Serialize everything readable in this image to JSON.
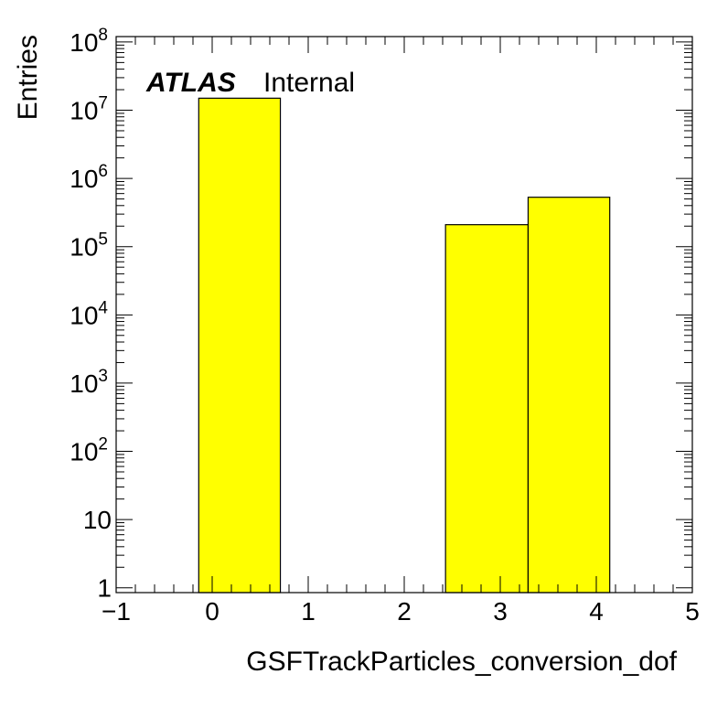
{
  "chart_data": {
    "type": "bar",
    "histogram": true,
    "label": {
      "experiment": "ATLAS",
      "status": "Internal"
    },
    "xlabel": "GSFTrackParticles_conversion_dof",
    "ylabel": "Entries",
    "xlim": [
      -1,
      5
    ],
    "ylim": [
      0.85,
      120000000
    ],
    "yscale": "log",
    "x_ticks": [
      {
        "value": -1,
        "label": "−1"
      },
      {
        "value": 0,
        "label": "0"
      },
      {
        "value": 1,
        "label": "1"
      },
      {
        "value": 2,
        "label": "2"
      },
      {
        "value": 3,
        "label": "3"
      },
      {
        "value": 4,
        "label": "4"
      },
      {
        "value": 5,
        "label": "5"
      }
    ],
    "y_ticks": [
      {
        "value": 1,
        "base": "1",
        "exp": ""
      },
      {
        "value": 10,
        "base": "10",
        "exp": ""
      },
      {
        "value": 100,
        "base": "10",
        "exp": "2"
      },
      {
        "value": 1000,
        "base": "10",
        "exp": "3"
      },
      {
        "value": 10000,
        "base": "10",
        "exp": "4"
      },
      {
        "value": 100000,
        "base": "10",
        "exp": "5"
      },
      {
        "value": 1000000,
        "base": "10",
        "exp": "6"
      },
      {
        "value": 10000000,
        "base": "10",
        "exp": "7"
      },
      {
        "value": 100000000,
        "base": "10",
        "exp": "8"
      }
    ],
    "bins": [
      {
        "low": -0.14,
        "high": 0.71,
        "value": 15000000
      },
      {
        "low": 2.43,
        "high": 3.29,
        "value": 210000
      },
      {
        "low": 3.29,
        "high": 4.14,
        "value": 530000
      }
    ],
    "fill_color": "#ffff00",
    "line_color": "#000000",
    "grid": false
  }
}
